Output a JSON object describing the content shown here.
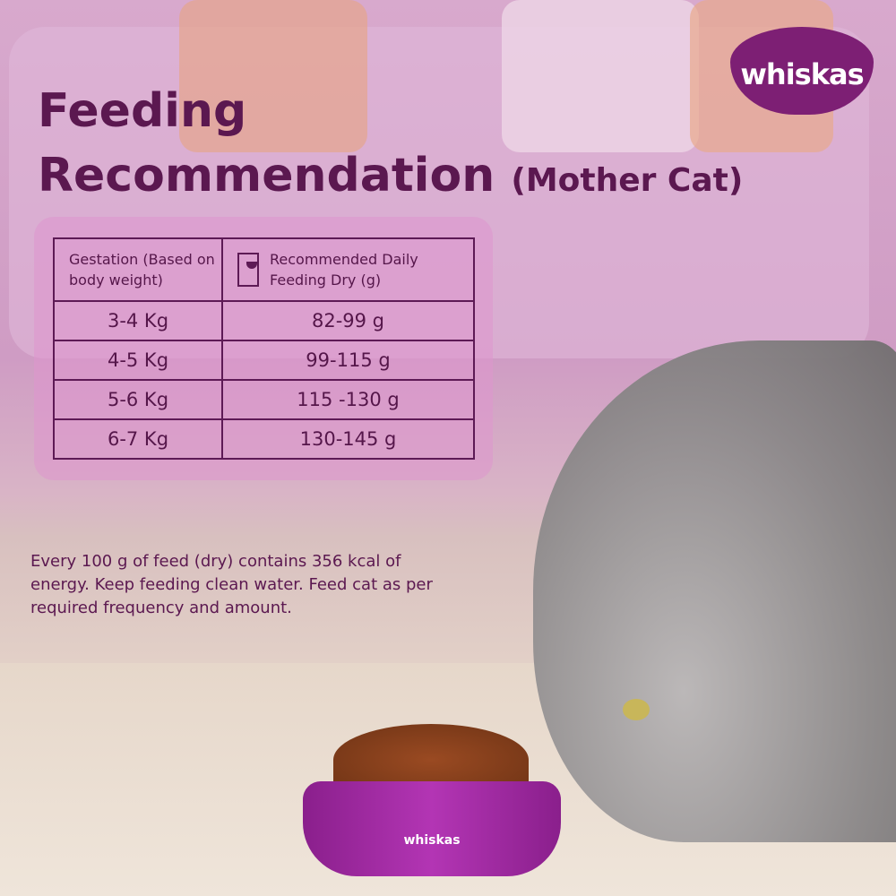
{
  "brand": {
    "logo_text": "whiskas",
    "bowl_text": "whiskas"
  },
  "title": {
    "line1": "Feeding",
    "line2": "Recommendation",
    "subtitle": "(Mother Cat)"
  },
  "table": {
    "headers": [
      "Gestation (Based on body weight)",
      "Recommended Daily Feeding Dry (g)"
    ],
    "rows": [
      [
        "3-4 Kg",
        "82-99 g"
      ],
      [
        "4-5 Kg",
        "99-115 g"
      ],
      [
        "5-6 Kg",
        "115 -130 g"
      ],
      [
        "6-7 Kg",
        "130-145 g"
      ]
    ]
  },
  "note": "Every 100 g of feed (dry) contains 356 kcal of energy. Keep feeding clean water. Feed cat as per required frequency and amount.",
  "colors": {
    "brand": "#7d1f74",
    "text": "#5b1850"
  }
}
